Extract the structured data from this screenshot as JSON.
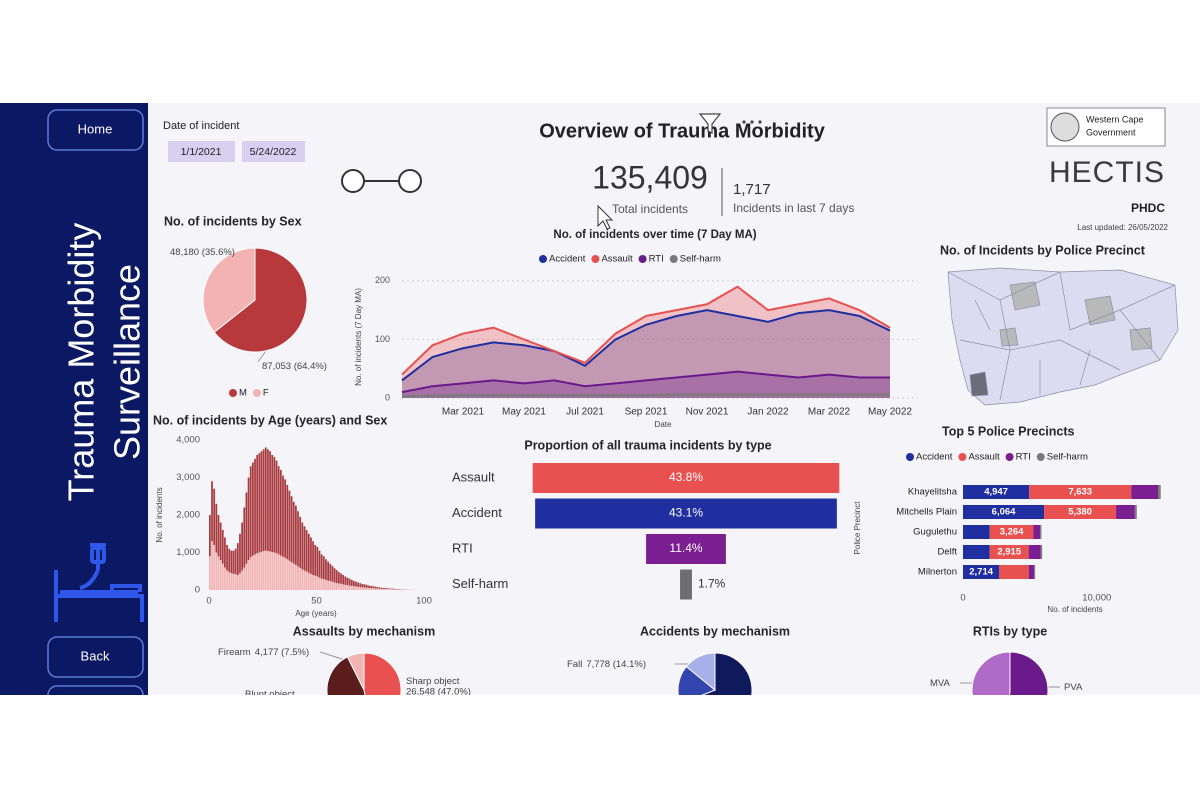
{
  "sidebar": {
    "home": "Home",
    "title_lines": [
      "Trauma Morbidity",
      "Surveillance"
    ],
    "back": "Back"
  },
  "filter": {
    "label": "Date of incident",
    "start": "1/1/2021",
    "end": "5/24/2022"
  },
  "header": {
    "title": "Overview of Trauma Morbidity",
    "total": "135,409",
    "total_label": "Total incidents",
    "recent": "1,717",
    "recent_label": "Incidents in last 7 days"
  },
  "logo": {
    "government_lines": [
      "Western Cape",
      "Government"
    ],
    "brand": "HECTIS",
    "org": "PHDC",
    "updated": "Last updated: 26/05/2022"
  },
  "chart_data": [
    {
      "type": "pie",
      "title": "No. of incidents by Sex",
      "categories": [
        "M",
        "F"
      ],
      "values": [
        87053,
        48180
      ],
      "value_labels": [
        "87,053 (64.4%)",
        "48,180 (35.6%)"
      ],
      "colors": [
        "#b8393c",
        "#f3b3b3"
      ],
      "legend": "bottom"
    },
    {
      "type": "line",
      "area": true,
      "title": "No. of incidents over time (7 Day MA)",
      "x_label": "Date",
      "y_label": "No. of incidents (7 Day MA)",
      "categories": [
        null,
        null,
        "Mar 2021",
        null,
        "May 2021",
        null,
        "Jul 2021",
        null,
        "Sep 2021",
        null,
        "Nov 2021",
        null,
        "Jan 2022",
        null,
        "Mar 2022",
        null,
        "May 2022"
      ],
      "ylim": [
        0,
        210
      ],
      "yticks": [
        0,
        100,
        200
      ],
      "grid": true,
      "legend": "top",
      "series": [
        {
          "name": "Accident",
          "color": "#1f2fa0",
          "values": [
            30,
            70,
            85,
            95,
            90,
            80,
            55,
            100,
            125,
            140,
            150,
            140,
            130,
            145,
            150,
            140,
            115
          ]
        },
        {
          "name": "Assault",
          "color": "#e8514f",
          "values": [
            40,
            90,
            110,
            120,
            100,
            80,
            60,
            110,
            140,
            150,
            160,
            190,
            150,
            160,
            170,
            150,
            120
          ]
        },
        {
          "name": "RTI",
          "color": "#6b1a8c",
          "values": [
            10,
            20,
            25,
            30,
            25,
            30,
            20,
            25,
            30,
            35,
            40,
            45,
            40,
            35,
            40,
            35,
            35
          ]
        },
        {
          "name": "Self-harm",
          "color": "#7a7a7a",
          "values": [
            3,
            4,
            5,
            5,
            5,
            5,
            5,
            5,
            5,
            6,
            6,
            6,
            6,
            6,
            6,
            6,
            6
          ]
        }
      ]
    },
    {
      "type": "histogram",
      "stacked": true,
      "title": "No. of incidents by Age (years) and Sex",
      "x_label": "Age (years)",
      "y_label": "No. of incidents",
      "bins": [
        0,
        1,
        2,
        3,
        4,
        5,
        6,
        7,
        8,
        9,
        10,
        11,
        12,
        13,
        14,
        15,
        16,
        17,
        18,
        19,
        20,
        21,
        22,
        23,
        24,
        25,
        26,
        27,
        28,
        29,
        30,
        31,
        32,
        33,
        34,
        35,
        36,
        37,
        38,
        39,
        40,
        41,
        42,
        43,
        44,
        45,
        46,
        47,
        48,
        49,
        50,
        51,
        52,
        53,
        54,
        55,
        56,
        57,
        58,
        59,
        60,
        61,
        62,
        63,
        64,
        65,
        66,
        67,
        68,
        69,
        70,
        71,
        72,
        73,
        74,
        75,
        76,
        77,
        78,
        79,
        80,
        81,
        82,
        83,
        84,
        85,
        86,
        87,
        88,
        89,
        90,
        91,
        92,
        93,
        94,
        95,
        96
      ],
      "xlim": [
        0,
        100
      ],
      "xticks": [
        0,
        50,
        100
      ],
      "ylim": [
        0,
        4000
      ],
      "yticks": [
        0,
        {
          "value": 1000,
          "label": "1,000"
        },
        {
          "value": 2000,
          "label": "2,000"
        },
        {
          "value": 3000,
          "label": "3,000"
        },
        {
          "value": 4000,
          "label": "4,000"
        }
      ],
      "series": [
        {
          "color": "#f3b3b3",
          "values": [
            900,
            1300,
            1200,
            1000,
            900,
            800,
            700,
            600,
            520,
            480,
            450,
            430,
            420,
            400,
            450,
            520,
            600,
            700,
            800,
            880,
            920,
            950,
            980,
            1000,
            1020,
            1040,
            1050,
            1040,
            1030,
            1010,
            1000,
            980,
            950,
            920,
            890,
            860,
            820,
            780,
            740,
            700,
            670,
            630,
            590,
            550,
            520,
            490,
            460,
            430,
            400,
            380,
            360,
            330,
            300,
            290,
            270,
            250,
            235,
            220,
            200,
            185,
            175,
            165,
            150,
            140,
            130,
            120,
            110,
            100,
            92,
            85,
            78,
            70,
            66,
            60,
            54,
            50,
            46,
            42,
            38,
            34,
            30,
            28,
            26,
            24,
            22,
            19,
            17,
            14,
            12,
            11,
            9,
            7,
            6,
            5,
            4,
            3
          ]
        },
        {
          "color": "#a83a3e",
          "values": [
            1100,
            1600,
            1500,
            1300,
            1100,
            1000,
            900,
            800,
            680,
            620,
            600,
            620,
            680,
            850,
            1050,
            1280,
            1600,
            1900,
            2200,
            2420,
            2480,
            2550,
            2620,
            2650,
            2680,
            2710,
            2750,
            2710,
            2670,
            2590,
            2550,
            2470,
            2350,
            2280,
            2160,
            2090,
            1980,
            1870,
            1760,
            1650,
            1580,
            1470,
            1360,
            1250,
            1180,
            1110,
            1040,
            970,
            900,
            820,
            790,
            720,
            650,
            610,
            550,
            510,
            465,
            420,
            380,
            345,
            305,
            275,
            250,
            220,
            200,
            180,
            160,
            140,
            128,
            115,
            102,
            90,
            84,
            75,
            66,
            60,
            54,
            48,
            42,
            36,
            30,
            27,
            24,
            21,
            18,
            16,
            13,
            11,
            8,
            7,
            6,
            5,
            4,
            3,
            2,
            2
          ]
        }
      ]
    },
    {
      "type": "bar",
      "orientation": "horizontal",
      "align": "center",
      "title": "Proportion of all trauma incidents by type",
      "categories": [
        "Assault",
        "Accident",
        "RTI",
        "Self-harm"
      ],
      "values": [
        43.8,
        43.1,
        11.4,
        1.7
      ],
      "value_labels": [
        "43.8%",
        "43.1%",
        "11.4%",
        "1.7%"
      ],
      "colors": [
        "#e8514f",
        "#1f2fa0",
        "#7a1e91",
        "#6e6e6e"
      ]
    },
    {
      "type": "map",
      "title": "No. of Incidents by Police Precinct"
    },
    {
      "type": "bar",
      "orientation": "horizontal",
      "stacked": true,
      "title": "Top 5 Police Precincts",
      "x_label": "No. of incidents",
      "y_label": "Police Precinct",
      "legend": "top",
      "categories": [
        "Khayelitsha",
        "Mitchells Plain",
        "Gugulethu",
        "Delft",
        "Milnerton"
      ],
      "xlim": [
        0,
        16000
      ],
      "xticks": [
        0,
        {
          "value": 10000,
          "label": "10,000"
        }
      ],
      "series": [
        {
          "name": "Accident",
          "color": "#1f2fa0",
          "values": [
            4947,
            6064,
            2000,
            2000,
            2714
          ],
          "value_labels": [
            "4,947",
            "6,064",
            null,
            null,
            "2,714"
          ]
        },
        {
          "name": "Assault",
          "color": "#e8514f",
          "values": [
            7633,
            5380,
            3264,
            2915,
            2200
          ],
          "value_labels": [
            "7,633",
            "5,380",
            "3,264",
            "2,915",
            null
          ]
        },
        {
          "name": "RTI",
          "color": "#7a1e91",
          "values": [
            2000,
            1400,
            500,
            900,
            400
          ]
        },
        {
          "name": "Self-harm",
          "color": "#7a7a7a",
          "values": [
            200,
            150,
            100,
            100,
            80
          ]
        }
      ]
    },
    {
      "type": "pie",
      "title": "Assaults by mechanism",
      "categories": [
        "Sharp object",
        "Blunt object",
        "Firearm"
      ],
      "values": [
        26548,
        25775,
        4177
      ],
      "value_labels": [
        "26,548 (47.0%)",
        null,
        "4,177 (7.5%)"
      ],
      "colors": [
        "#e8514f",
        "#5b1c1c",
        "#f4b3b3"
      ]
    },
    {
      "type": "pie",
      "title": "Accidents by mechanism",
      "categories": [
        null,
        null,
        "Fall"
      ],
      "values": [
        38000,
        9382,
        7778
      ],
      "value_labels": [
        null,
        null,
        "7,778 (14.1%)"
      ],
      "colors": [
        "#0f1a5c",
        "#3346b0",
        "#a7b0e8"
      ]
    },
    {
      "type": "pie",
      "title": "RTIs by type",
      "categories": [
        "PVA",
        "MVA"
      ],
      "values": [
        7977,
        7463
      ],
      "colors": [
        "#6b1a8c",
        "#b06bc8"
      ]
    }
  ]
}
